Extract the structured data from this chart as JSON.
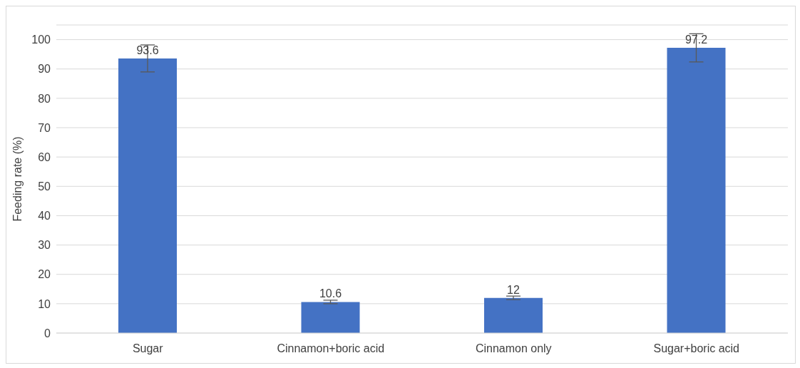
{
  "chart_data": {
    "type": "bar",
    "ylabel": "Feeding rate (%)",
    "categories": [
      "Sugar",
      "Cinnamon+boric acid",
      "Cinnamon only",
      "Sugar+boric acid"
    ],
    "values": [
      93.6,
      10.6,
      12,
      97.2
    ],
    "errors": [
      4.6,
      0.6,
      0.6,
      4.8
    ],
    "color": "#4472c4",
    "data_labels": true,
    "ylim": [
      0,
      105
    ],
    "yticks": [
      0,
      10,
      20,
      30,
      40,
      50,
      60,
      70,
      80,
      90,
      100
    ],
    "grid": "y"
  }
}
